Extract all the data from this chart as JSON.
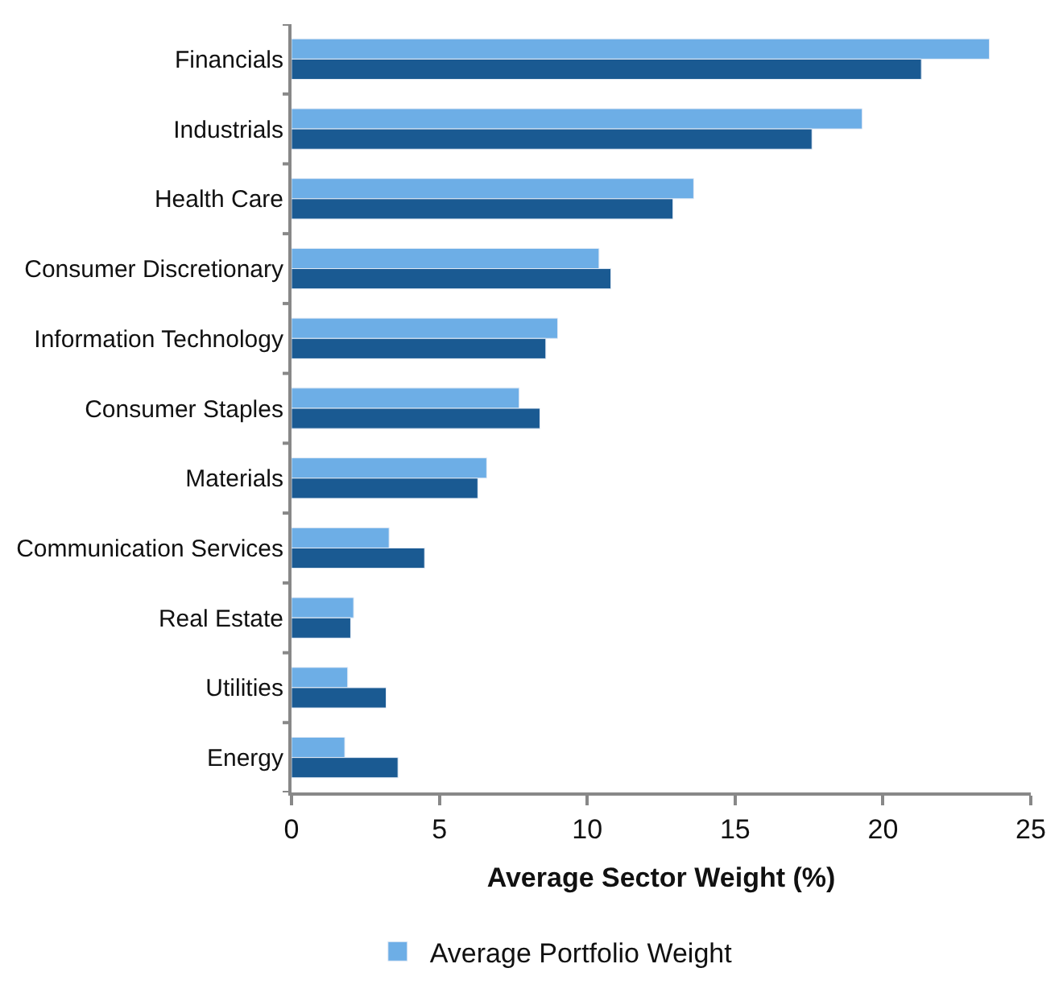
{
  "chart_data": {
    "type": "bar",
    "orientation": "horizontal",
    "xlabel": "Average Sector Weight (%)",
    "categories": [
      "Financials",
      "Industrials",
      "Health Care",
      "Consumer Discretionary",
      "Information Technology",
      "Consumer Staples",
      "Materials",
      "Communication Services",
      "Real Estate",
      "Utilities",
      "Energy"
    ],
    "series": [
      {
        "name": "Average Portfolio Weight",
        "color": "#6daee6",
        "values": [
          23.6,
          19.3,
          13.6,
          10.4,
          9.0,
          7.7,
          6.6,
          3.3,
          2.1,
          1.9,
          1.8
        ]
      },
      {
        "color": "#1a5a92",
        "values": [
          21.3,
          17.6,
          12.9,
          10.8,
          8.6,
          8.4,
          6.3,
          4.5,
          2.0,
          3.2,
          3.6
        ]
      }
    ],
    "xlim": [
      0,
      25
    ],
    "xticks": [
      0,
      5,
      10,
      15,
      20,
      25
    ],
    "legend": "bottom"
  }
}
